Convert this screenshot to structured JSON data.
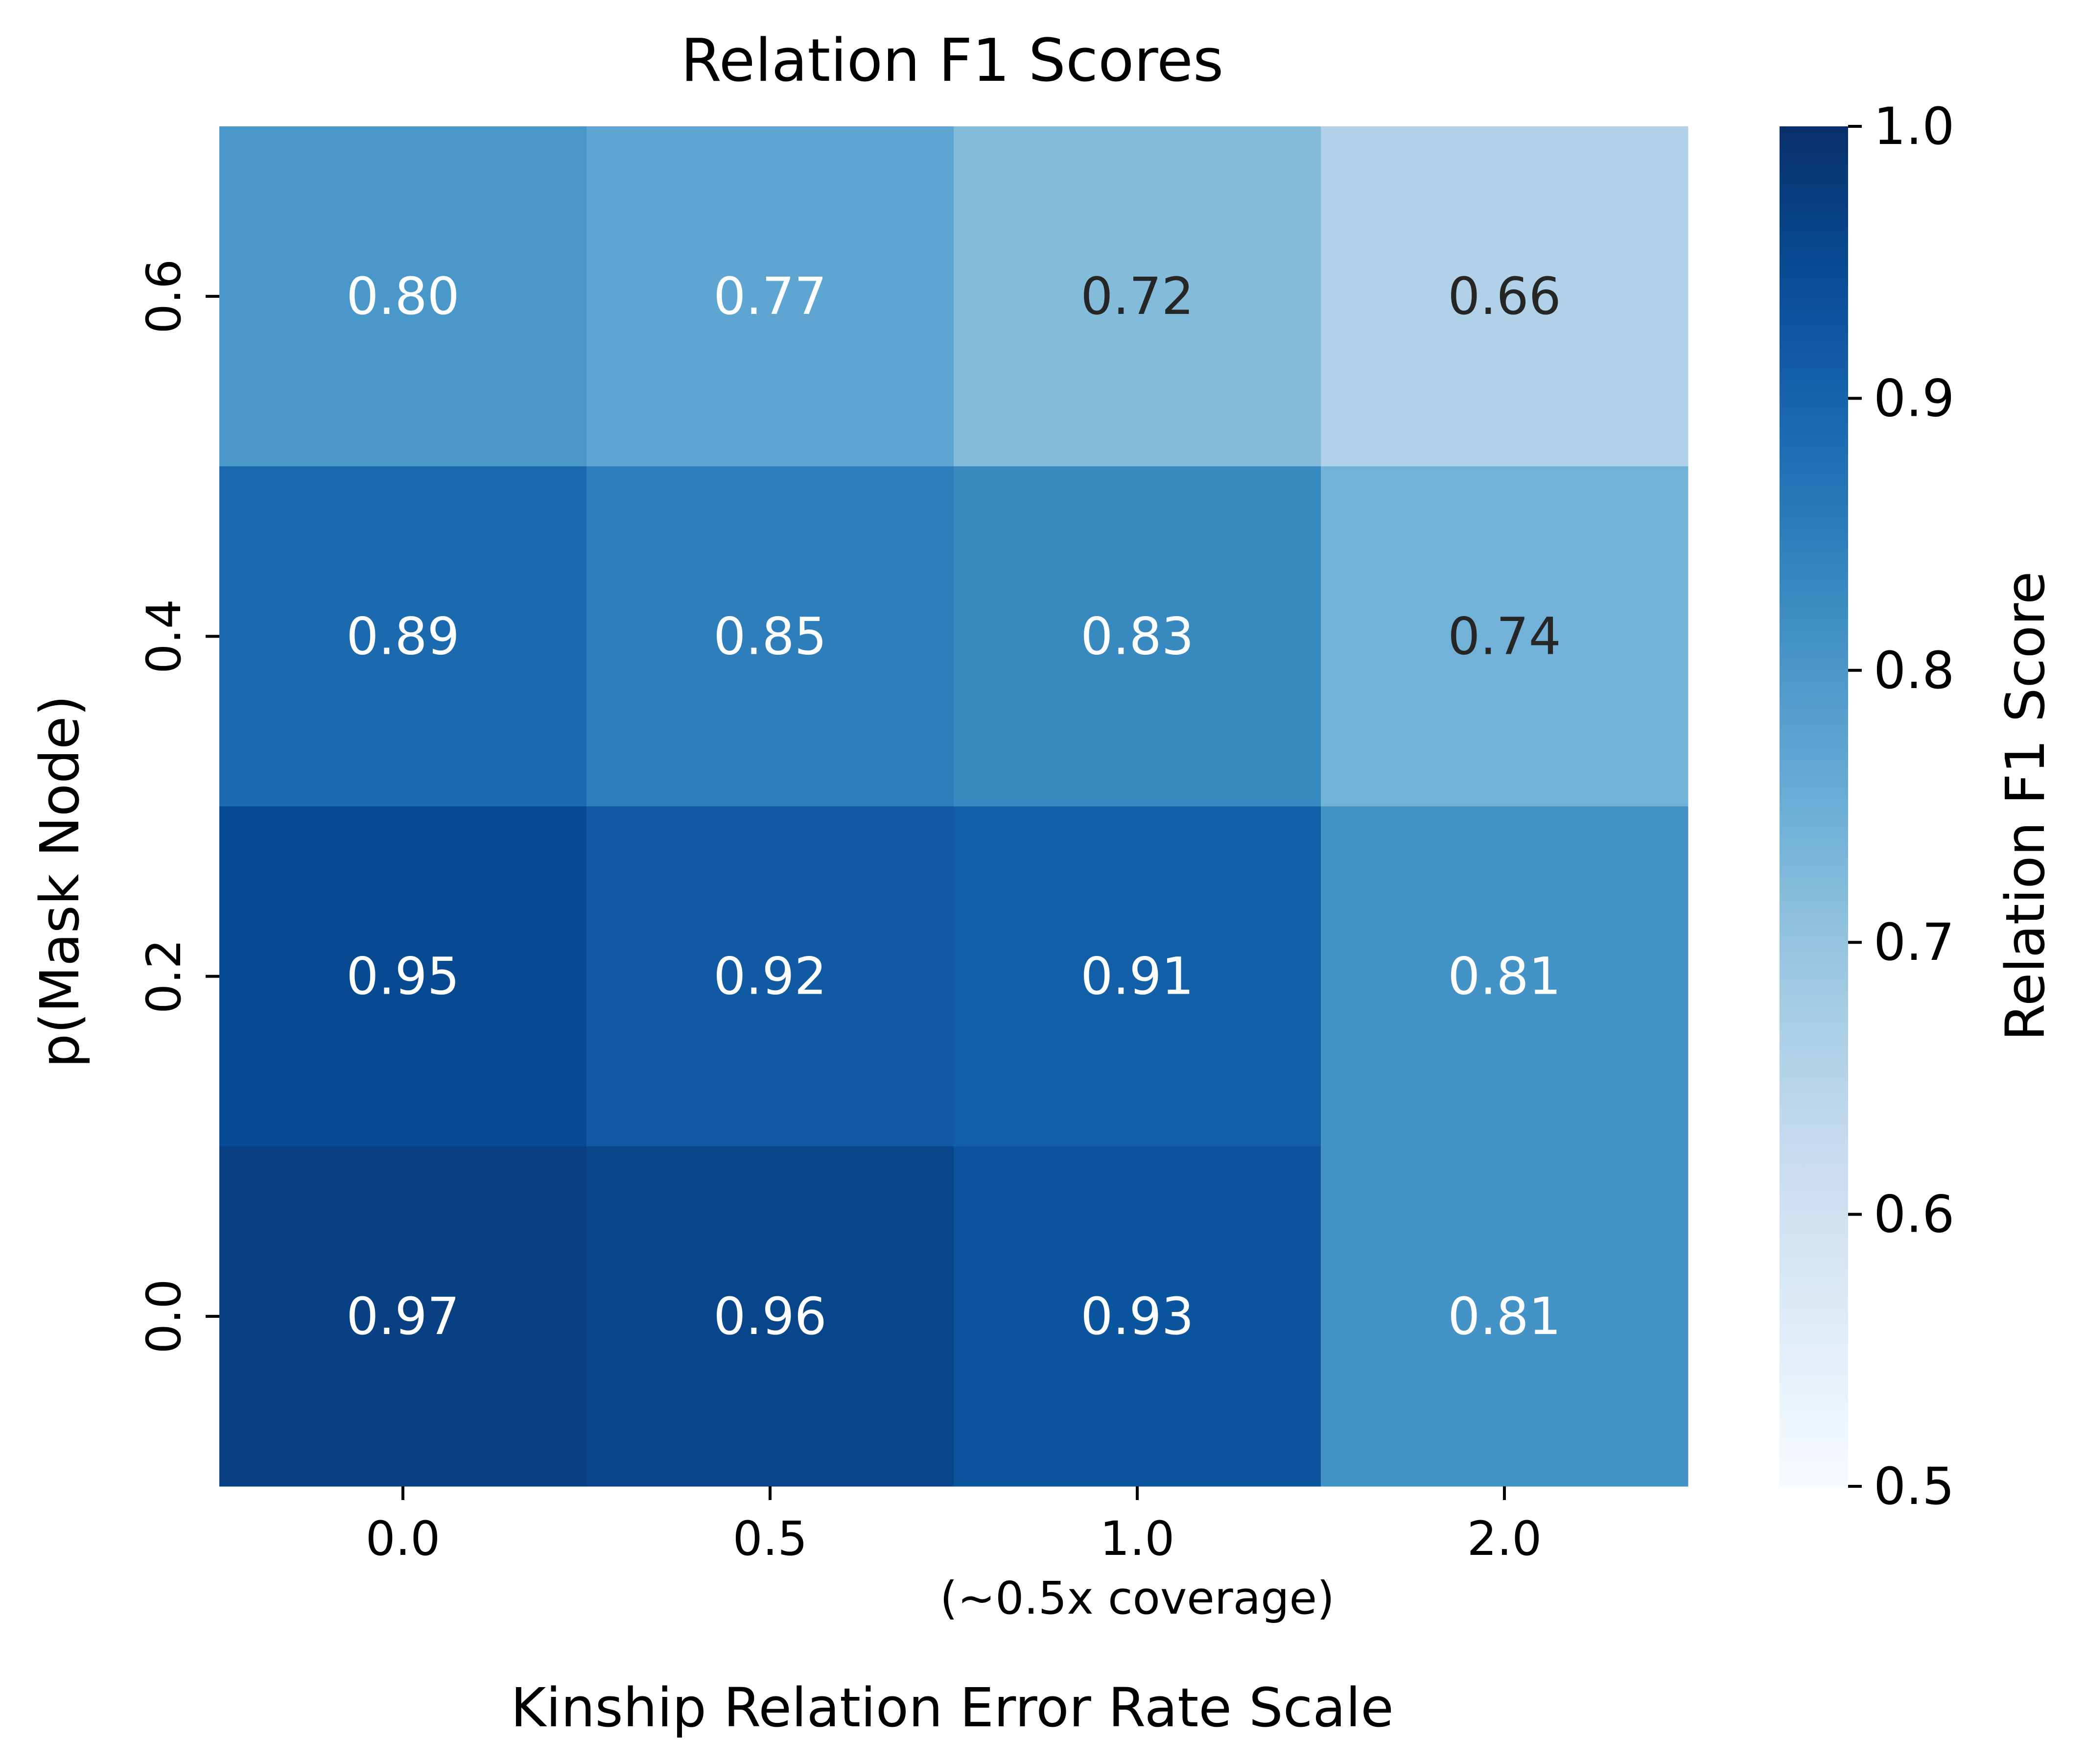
{
  "chart_data": {
    "type": "heatmap",
    "title": "Relation F1 Scores",
    "xlabel": "Kinship Relation Error Rate Scale",
    "ylabel": "p(Mask Node)",
    "x_categories": [
      "0.0",
      "0.5",
      "1.0",
      "2.0"
    ],
    "x_sub_labels": [
      "",
      "",
      "(~0.5x coverage)",
      ""
    ],
    "y_categories": [
      "0.6",
      "0.4",
      "0.2",
      "0.0"
    ],
    "values": [
      [
        0.8,
        0.77,
        0.72,
        0.66
      ],
      [
        0.89,
        0.85,
        0.83,
        0.74
      ],
      [
        0.95,
        0.92,
        0.91,
        0.81
      ],
      [
        0.97,
        0.96,
        0.93,
        0.81
      ]
    ],
    "value_labels": [
      [
        "0.80",
        "0.77",
        "0.72",
        "0.66"
      ],
      [
        "0.89",
        "0.85",
        "0.83",
        "0.74"
      ],
      [
        "0.95",
        "0.92",
        "0.91",
        "0.81"
      ],
      [
        "0.97",
        "0.96",
        "0.93",
        "0.81"
      ]
    ],
    "colormap": "Blues",
    "vmin": 0.5,
    "vmax": 1.0,
    "colorbar": {
      "label": "Relation F1 Score",
      "ticks": [
        0.5,
        0.6,
        0.7,
        0.8,
        0.9,
        1.0
      ],
      "tick_labels": [
        "0.5",
        "0.6",
        "0.7",
        "0.8",
        "0.9",
        "1.0"
      ]
    },
    "grid": false
  }
}
